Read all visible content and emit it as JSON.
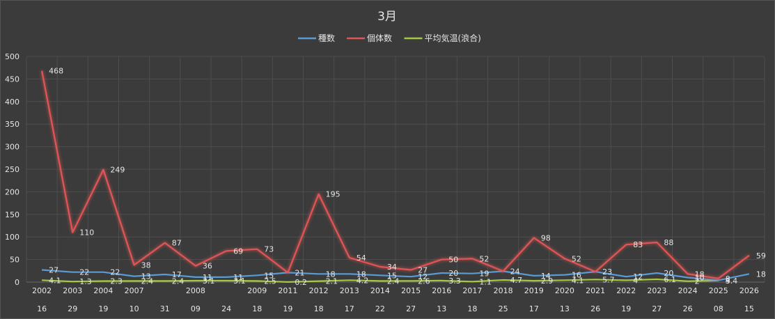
{
  "chart_data": {
    "type": "line",
    "title": "3月",
    "legend_position": "top",
    "grid": true,
    "ylim": [
      0,
      500
    ],
    "y_ticks": [
      0,
      50,
      100,
      150,
      200,
      250,
      300,
      350,
      400,
      450,
      500
    ],
    "x_row1": [
      "2002",
      "2003",
      "2004",
      "2007",
      "",
      "2008",
      "",
      "2009",
      "2011",
      "2012",
      "2013",
      "2014",
      "2015",
      "2016",
      "2017",
      "2018",
      "2019",
      "2020",
      "2021",
      "2022",
      "2023",
      "2024",
      "2025",
      "2026"
    ],
    "x_row2": [
      "16",
      "29",
      "19",
      "10",
      "31",
      "09",
      "24",
      "18",
      "19",
      "18",
      "17",
      "22",
      "27",
      "13",
      "18",
      "25",
      "17",
      "13",
      "26",
      "19",
      "27",
      "26",
      "08",
      "15"
    ],
    "series": [
      {
        "name": "種数",
        "color": "#5b9bd5",
        "values": [
          27,
          22,
          22,
          13,
          17,
          11,
          11,
          15,
          21,
          18,
          18,
          15,
          12,
          20,
          19,
          24,
          14,
          16,
          23,
          12,
          20,
          10,
          4,
          18
        ],
        "labels": [
          "27",
          "22",
          "22",
          "13",
          "17",
          "11",
          "11",
          "15",
          "21",
          "18",
          "18",
          "15",
          "12",
          "20",
          "19",
          "24",
          "14",
          "16",
          "23",
          "12",
          "20",
          "10",
          "4",
          "18"
        ]
      },
      {
        "name": "個体数",
        "color": "#e05555",
        "values": [
          468,
          110,
          249,
          38,
          87,
          36,
          69,
          73,
          21,
          195,
          54,
          34,
          27,
          50,
          52,
          24,
          98,
          52,
          23,
          83,
          88,
          18,
          8,
          59
        ],
        "labels": [
          "468",
          "110",
          "249",
          "38",
          "87",
          "36",
          "69",
          "73",
          "",
          "195",
          "54",
          "34",
          "27",
          "50",
          "52",
          "",
          "98",
          "52",
          "",
          "83",
          "88",
          "18",
          "8",
          "59"
        ]
      },
      {
        "name": "平均気温(浪合)",
        "color": "#a5c940",
        "values": [
          4.1,
          1.3,
          2.3,
          2.4,
          2.4,
          3.1,
          3.1,
          2.5,
          0.2,
          2.1,
          4.2,
          2.4,
          2.6,
          3.3,
          1.1,
          4.7,
          2.9,
          4.1,
          5.7,
          4,
          6.1,
          2,
          3.4,
          null
        ],
        "labels": [
          "4.1",
          "1.3",
          "2.3",
          "2.4",
          "2.4",
          "3.1",
          "3.1",
          "2.5",
          "0.2",
          "2.1",
          "4.2",
          "2.4",
          "2.6",
          "3.3",
          "1.1",
          "4.7",
          "2.9",
          "4.1",
          "5.7",
          "4",
          "6.1",
          "2",
          "3.4",
          ""
        ]
      }
    ]
  }
}
